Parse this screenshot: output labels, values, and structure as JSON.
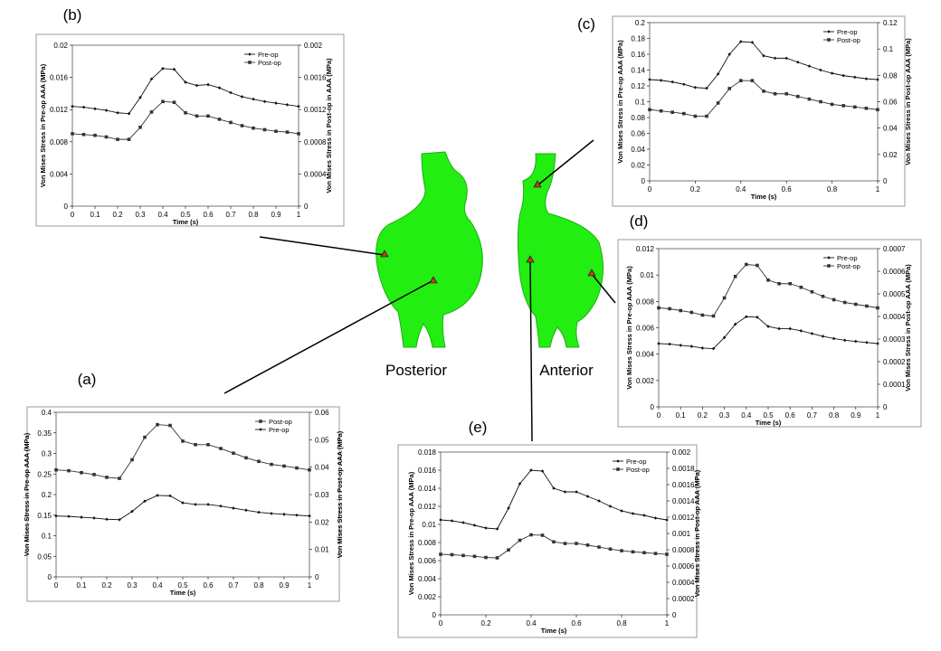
{
  "labels": {
    "posterior": "Posterior",
    "anterior": "Anterior"
  },
  "chart_data": [
    {
      "type": "line",
      "panel_label": "(a)",
      "xlabel": "Time (s)",
      "ylabel": "Von Mises Stress in Pre-op AAA (MPa)",
      "y2label": "Von Mises Stress in Post-op AAA (MPa)",
      "x": [
        0,
        0.05,
        0.1,
        0.15,
        0.2,
        0.25,
        0.3,
        0.35,
        0.4,
        0.45,
        0.5,
        0.55,
        0.6,
        0.65,
        0.7,
        0.75,
        0.8,
        0.85,
        0.9,
        0.95,
        1
      ],
      "xlim": [
        0,
        1
      ],
      "xticks": [
        0,
        0.1,
        0.2,
        0.3,
        0.4,
        0.5,
        0.6,
        0.7,
        0.8,
        0.9,
        1
      ],
      "ylim": [
        0,
        0.4
      ],
      "yticks": [
        0,
        0.05,
        0.1,
        0.15,
        0.2,
        0.25,
        0.3,
        0.35,
        0.4
      ],
      "y2lim": [
        0,
        0.06
      ],
      "y2ticks": [
        0,
        0.01,
        0.02,
        0.03,
        0.04,
        0.05,
        0.06
      ],
      "legend": "upper right",
      "series": [
        {
          "name": "Post-op",
          "color": "#333333",
          "marker": "square",
          "axis": "y2",
          "values": [
            0.039,
            0.0387,
            0.038,
            0.0373,
            0.0363,
            0.0359,
            0.0427,
            0.0509,
            0.0555,
            0.0552,
            0.0495,
            0.0482,
            0.0482,
            0.0468,
            0.0451,
            0.0434,
            0.0421,
            0.041,
            0.0404,
            0.0397,
            0.039
          ]
        },
        {
          "name": "Pre-op",
          "color": "#111111",
          "marker": "diamond",
          "axis": "y",
          "values": [
            0.148,
            0.147,
            0.145,
            0.143,
            0.14,
            0.139,
            0.159,
            0.184,
            0.198,
            0.197,
            0.18,
            0.176,
            0.176,
            0.172,
            0.167,
            0.162,
            0.157,
            0.154,
            0.152,
            0.15,
            0.148
          ]
        }
      ]
    },
    {
      "type": "line",
      "panel_label": "(b)",
      "xlabel": "Time (s)",
      "ylabel": "Von Mises Stress in Pre-op AAA (MPa)",
      "y2label": "Von Mises Stress in Post-op in AAA (MPa)",
      "x": [
        0,
        0.05,
        0.1,
        0.15,
        0.2,
        0.25,
        0.3,
        0.35,
        0.4,
        0.45,
        0.5,
        0.55,
        0.6,
        0.65,
        0.7,
        0.75,
        0.8,
        0.85,
        0.9,
        0.95,
        1
      ],
      "xlim": [
        0,
        1
      ],
      "xticks": [
        0,
        0.1,
        0.2,
        0.3,
        0.4,
        0.5,
        0.6,
        0.7,
        0.8,
        0.9,
        1
      ],
      "ylim": [
        0,
        0.02
      ],
      "yticks": [
        0,
        0.004,
        0.008,
        0.012,
        0.016,
        0.02
      ],
      "y2lim": [
        0,
        0.002
      ],
      "y2ticks": [
        0,
        0.0004,
        0.0008,
        0.0012,
        0.0016,
        0.002
      ],
      "legend": "upper right",
      "series": [
        {
          "name": "Pre-op",
          "color": "#111111",
          "marker": "diamond",
          "axis": "y",
          "values": [
            0.0124,
            0.0123,
            0.0121,
            0.0119,
            0.0116,
            0.0115,
            0.0135,
            0.0158,
            0.0171,
            0.017,
            0.0154,
            0.015,
            0.0151,
            0.0147,
            0.0141,
            0.0136,
            0.0133,
            0.013,
            0.0128,
            0.0126,
            0.0124
          ]
        },
        {
          "name": "Post-op",
          "color": "#333333",
          "marker": "square",
          "axis": "y2",
          "values": [
            0.0009,
            0.00089,
            0.00088,
            0.00086,
            0.00083,
            0.00083,
            0.00098,
            0.00117,
            0.0013,
            0.00129,
            0.00116,
            0.00112,
            0.00112,
            0.00108,
            0.00104,
            0.001,
            0.00097,
            0.00095,
            0.00093,
            0.00092,
            0.0009
          ]
        }
      ]
    },
    {
      "type": "line",
      "panel_label": "(c)",
      "xlabel": "Time (s)",
      "ylabel": "Von Mises Stress in Pre-op AAA (MPa)",
      "y2label": "Von Mises Stress in Post-op AAA (MPa)",
      "x": [
        0,
        0.05,
        0.1,
        0.15,
        0.2,
        0.25,
        0.3,
        0.35,
        0.4,
        0.45,
        0.5,
        0.55,
        0.6,
        0.65,
        0.7,
        0.75,
        0.8,
        0.85,
        0.9,
        0.95,
        1
      ],
      "xlim": [
        0,
        1
      ],
      "xticks": [
        0,
        0.2,
        0.4,
        0.6,
        0.8,
        1
      ],
      "ylim": [
        0,
        0.2
      ],
      "yticks": [
        0,
        0.02,
        0.04,
        0.06,
        0.08,
        0.1,
        0.12,
        0.14,
        0.16,
        0.18,
        0.2
      ],
      "y2lim": [
        0,
        0.12
      ],
      "y2ticks": [
        0,
        0.02,
        0.04,
        0.06,
        0.08,
        0.1,
        0.12
      ],
      "legend": "upper right",
      "series": [
        {
          "name": "Pre-op",
          "color": "#111111",
          "marker": "diamond",
          "axis": "y",
          "values": [
            0.128,
            0.127,
            0.125,
            0.122,
            0.118,
            0.117,
            0.135,
            0.16,
            0.176,
            0.175,
            0.158,
            0.155,
            0.155,
            0.15,
            0.145,
            0.14,
            0.136,
            0.133,
            0.131,
            0.129,
            0.128
          ]
        },
        {
          "name": "Post-op",
          "color": "#333333",
          "marker": "square",
          "axis": "y2",
          "values": [
            0.054,
            0.053,
            0.052,
            0.051,
            0.049,
            0.049,
            0.059,
            0.07,
            0.076,
            0.076,
            0.068,
            0.066,
            0.066,
            0.064,
            0.062,
            0.06,
            0.058,
            0.057,
            0.056,
            0.055,
            0.054
          ]
        }
      ]
    },
    {
      "type": "line",
      "panel_label": "(d)",
      "xlabel": "Time (s)",
      "ylabel": "Von Mises Stress in Pre-op AAA (MPa)",
      "y2label": "Von Mises Stress in Post-op AAA (MPa)",
      "x": [
        0,
        0.05,
        0.1,
        0.15,
        0.2,
        0.25,
        0.3,
        0.35,
        0.4,
        0.45,
        0.5,
        0.55,
        0.6,
        0.65,
        0.7,
        0.75,
        0.8,
        0.85,
        0.9,
        0.95,
        1
      ],
      "xlim": [
        0,
        1
      ],
      "xticks": [
        0,
        0.1,
        0.2,
        0.3,
        0.4,
        0.5,
        0.6,
        0.7,
        0.8,
        0.9,
        1
      ],
      "ylim": [
        0,
        0.012
      ],
      "yticks": [
        0,
        0.002,
        0.004,
        0.006,
        0.008,
        0.01,
        0.012
      ],
      "y2lim": [
        0,
        0.0007
      ],
      "y2ticks": [
        0,
        0.0001,
        0.0002,
        0.0003,
        0.0004,
        0.0005,
        0.0006,
        0.0007
      ],
      "legend": "upper right",
      "series": [
        {
          "name": "Pre-op",
          "color": "#111111",
          "marker": "diamond",
          "axis": "y",
          "values": [
            0.0048,
            0.00476,
            0.00467,
            0.00459,
            0.00446,
            0.00442,
            0.00526,
            0.00627,
            0.00684,
            0.0068,
            0.0061,
            0.00593,
            0.00593,
            0.00577,
            0.00556,
            0.00535,
            0.00518,
            0.00505,
            0.00497,
            0.00488,
            0.0048
          ]
        },
        {
          "name": "Post-op",
          "color": "#333333",
          "marker": "square",
          "axis": "y2",
          "values": [
            0.000438,
            0.000434,
            0.000426,
            0.000418,
            0.000406,
            0.000402,
            0.000482,
            0.000577,
            0.00063,
            0.000626,
            0.000561,
            0.000545,
            0.000545,
            0.000529,
            0.000509,
            0.000489,
            0.000474,
            0.000462,
            0.000454,
            0.000446,
            0.000438
          ]
        }
      ]
    },
    {
      "type": "line",
      "panel_label": "(e)",
      "xlabel": "Time (s)",
      "ylabel": "Von Mises Stress in Pre-op AAA (MPa)",
      "y2label": "Von Mises Stress in Post-op AAA (MPa)",
      "x": [
        0,
        0.05,
        0.1,
        0.15,
        0.2,
        0.25,
        0.3,
        0.35,
        0.4,
        0.45,
        0.5,
        0.55,
        0.6,
        0.65,
        0.7,
        0.75,
        0.8,
        0.85,
        0.9,
        0.95,
        1
      ],
      "xlim": [
        0,
        1
      ],
      "xticks": [
        0,
        0.2,
        0.4,
        0.6,
        0.8,
        1
      ],
      "ylim": [
        0,
        0.018
      ],
      "yticks": [
        0,
        0.002,
        0.004,
        0.006,
        0.008,
        0.01,
        0.012,
        0.014,
        0.016,
        0.018
      ],
      "y2lim": [
        0,
        0.002
      ],
      "y2ticks": [
        0,
        0.0002,
        0.0004,
        0.0006,
        0.0008,
        0.001,
        0.0012,
        0.0014,
        0.0016,
        0.0018,
        0.002
      ],
      "legend": "upper right",
      "series": [
        {
          "name": "Pre-op",
          "color": "#111111",
          "marker": "diamond",
          "axis": "y",
          "values": [
            0.0105,
            0.0104,
            0.0102,
            0.0099,
            0.0096,
            0.0095,
            0.0118,
            0.0145,
            0.016,
            0.0159,
            0.014,
            0.0136,
            0.0136,
            0.0131,
            0.0126,
            0.012,
            0.0115,
            0.0112,
            0.011,
            0.0107,
            0.0105
          ]
        },
        {
          "name": "Post-op",
          "color": "#333333",
          "marker": "square",
          "axis": "y2",
          "values": [
            0.000744,
            0.000739,
            0.000729,
            0.000719,
            0.000705,
            0.0007,
            0.000798,
            0.000916,
            0.000983,
            0.000978,
            0.000897,
            0.000877,
            0.000877,
            0.000857,
            0.000833,
            0.000808,
            0.000788,
            0.000774,
            0.000764,
            0.000754,
            0.000744
          ]
        }
      ]
    }
  ]
}
